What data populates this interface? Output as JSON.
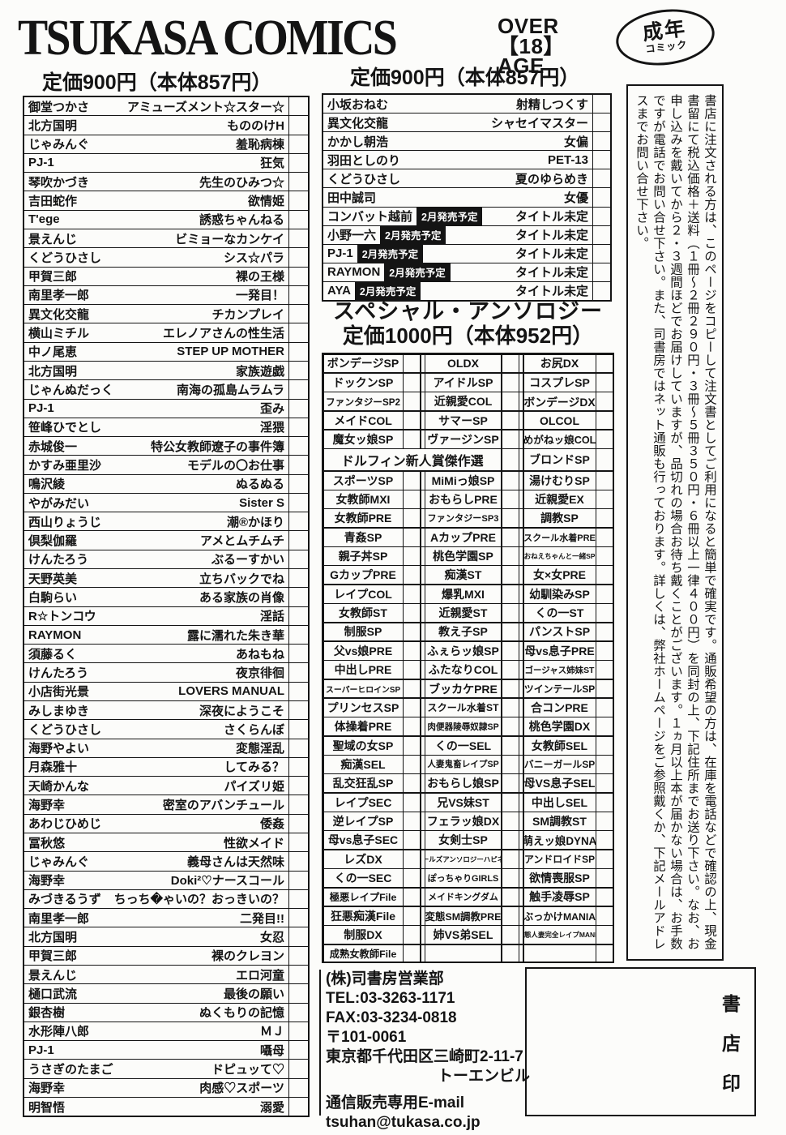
{
  "header": {
    "brand": "TSUKASA COMICS",
    "age_badge": {
      "line1": "OVER",
      "line2": "【18】",
      "line3": "AGE"
    },
    "adult_badge": {
      "top": "成年",
      "bottom": "コミック"
    },
    "price_left": "定価900円（本体857円）",
    "price_right": "定価900円（本体857円）"
  },
  "left_list": {
    "rows": [
      {
        "a": "御堂つかさ",
        "t": "アミューズメント☆スター☆"
      },
      {
        "a": "北方国明",
        "t": "もののけH"
      },
      {
        "a": "じゃみんぐ",
        "t": "羞恥病棟"
      },
      {
        "a": "PJ-1",
        "t": "狂気"
      },
      {
        "a": "琴吹かづき",
        "t": "先生のひみつ☆"
      },
      {
        "a": "吉田蛇作",
        "t": "欲情姫"
      },
      {
        "a": "T'ege",
        "t": "誘惑ちゃんねる"
      },
      {
        "a": "景えんじ",
        "t": "ビミョーなカンケイ"
      },
      {
        "a": "くどうひさし",
        "t": "シス☆パラ"
      },
      {
        "a": "甲賀三郎",
        "t": "裸の王様"
      },
      {
        "a": "南里孝一郎",
        "t": "一発目！"
      },
      {
        "a": "異文化交龍",
        "t": "チカンプレイ"
      },
      {
        "a": "横山ミチル",
        "t": "エレノアさんの性生活"
      },
      {
        "a": "中ノ尾恵",
        "t": "STEP UP MOTHER"
      },
      {
        "a": "北方国明",
        "t": "家族遊戯"
      },
      {
        "a": "じゃんぬだっく",
        "t": "南海の孤島ムラムラ"
      },
      {
        "a": "PJ-1",
        "t": "歪み"
      },
      {
        "a": "笹峰ひでとし",
        "t": "淫猥"
      },
      {
        "a": "赤城俊一",
        "t": "特公女教師遼子の事件簿"
      },
      {
        "a": "かすみ亜里沙",
        "t": "モデルの〇お仕事"
      },
      {
        "a": "鳴沢綾",
        "t": "ぬるぬる"
      },
      {
        "a": "やがみだい",
        "t": "Sister S"
      },
      {
        "a": "西山りょうじ",
        "t": "潮®かほり"
      },
      {
        "a": "倶梨伽羅",
        "t": "アメとムチムチ"
      },
      {
        "a": "けんたろう",
        "t": "ぶるーすかい"
      },
      {
        "a": "天野英美",
        "t": "立ちバックでね"
      },
      {
        "a": "白駒らい",
        "t": "ある家族の肖像"
      },
      {
        "a": "R☆トンコウ",
        "t": "淫話"
      },
      {
        "a": "RAYMON",
        "t": "露に濡れた朱き華"
      },
      {
        "a": "須藤るく",
        "t": "あねもね"
      },
      {
        "a": "けんたろう",
        "t": "夜京徘徊"
      },
      {
        "a": "小店街光景",
        "t": "LOVERS MANUAL"
      },
      {
        "a": "みしまゆき",
        "t": "深夜にようこそ"
      },
      {
        "a": "くどうひさし",
        "t": "さくらんぼ"
      },
      {
        "a": "海野やよい",
        "t": "変態淫乱"
      },
      {
        "a": "月森雅十",
        "t": "してみる？"
      },
      {
        "a": "天崎かんな",
        "t": "パイズリ姫"
      },
      {
        "a": "海野幸",
        "t": "密室のアバンチュール"
      },
      {
        "a": "あわじひめじ",
        "t": "倭姦"
      },
      {
        "a": "冨秋悠",
        "t": "性欲メイド"
      },
      {
        "a": "じゃみんぐ",
        "t": "義母さんは天然味"
      },
      {
        "a": "海野幸",
        "t": "Doki²♡ナースコール"
      },
      {
        "a": "みづきるうず",
        "t": "ちっち�ゃいの？おっきいの？"
      },
      {
        "a": "南里孝一郎",
        "t": "二発目!!"
      },
      {
        "a": "北方国明",
        "t": "女忍"
      },
      {
        "a": "甲賀三郎",
        "t": "裸のクレヨン"
      },
      {
        "a": "景えんじ",
        "t": "エロ河童"
      },
      {
        "a": "樋口武流",
        "t": "最後の願い"
      },
      {
        "a": "銀杏樹",
        "t": "ぬくもりの記憶"
      },
      {
        "a": "水形陣八郎",
        "t": "ＭＪ"
      },
      {
        "a": "PJ-1",
        "t": "囁母"
      },
      {
        "a": "うさぎのたまご",
        "t": "ドピュッて♡"
      },
      {
        "a": "海野幸",
        "t": "肉感♡スポーツ"
      },
      {
        "a": "明智悟",
        "t": "溺愛"
      }
    ]
  },
  "right_list": {
    "release_badge": "2月発売予定",
    "rows": [
      {
        "a": "小坂おねむ",
        "t": "射精しつくす"
      },
      {
        "a": "異文化交龍",
        "t": "シャセイマスター"
      },
      {
        "a": "かかし朝浩",
        "t": "女偏"
      },
      {
        "a": "羽田としのり",
        "t": "PET-13"
      },
      {
        "a": "くどうひさし",
        "t": "夏のゆらめき"
      },
      {
        "a": "田中誠司",
        "t": "女優"
      },
      {
        "a": "コンバット越前",
        "badge": true,
        "t": "タイトル未定"
      },
      {
        "a": "小野一六",
        "badge": true,
        "t": "タイトル未定"
      },
      {
        "a": "PJ-1",
        "badge": true,
        "t": "タイトル未定"
      },
      {
        "a": "RAYMON",
        "badge": true,
        "t": "タイトル未定"
      },
      {
        "a": "AYA",
        "badge": true,
        "t": "タイトル未定"
      }
    ]
  },
  "anthology": {
    "title": "スペシャル・アンソロジー",
    "price": "定価1000円（本体952円）",
    "rows": [
      {
        "c1": "ボンデージSP",
        "c2": "OLDX",
        "c3": "お尻DX"
      },
      {
        "c1": "ドックンSP",
        "c2": "アイドルSP",
        "c3": "コスプレSP"
      },
      {
        "c1": "ファンタジーSP2",
        "c2": "近親愛COL",
        "c3": "ボンデージDX"
      },
      {
        "c1": "メイドCOL",
        "c2": "サマーSP",
        "c3": "OLCOL"
      },
      {
        "c1": "魔女ッ娘SP",
        "c2": "ヴァージンSP",
        "c3": "めがねッ娘COL"
      },
      {
        "span": "ドルフィン新人賞傑作選",
        "c3": "ブロンドSP"
      },
      {
        "c1": "スポーツSP",
        "c2": "MiMiっ娘SP",
        "c3": "湯けむりSP"
      },
      {
        "c1": "女教師MXI",
        "c2": "おもらしPRE",
        "c3": "近親愛EX"
      },
      {
        "c1": "女教師PRE",
        "c2": "ファンタジーSP3",
        "c3": "調教SP"
      },
      {
        "c1": "青姦SP",
        "c2": "AカップPRE",
        "c3": "スクール水着PRE"
      },
      {
        "c1": "親子丼SP",
        "c2": "桃色学園SP",
        "c3": "おねえちゃんと一緒SP"
      },
      {
        "c1": "GカップPRE",
        "c2": "痴漢ST",
        "c3": "女×女PRE"
      },
      {
        "c1": "レイプCOL",
        "c2": "爆乳MXI",
        "c3": "幼馴染みSP"
      },
      {
        "c1": "女教師ST",
        "c2": "近親愛ST",
        "c3": "くの一ST"
      },
      {
        "c1": "制服SP",
        "c2": "教え子SP",
        "c3": "パンストSP"
      },
      {
        "c1": "父vs娘PRE",
        "c2": "ふぇらッ娘SP",
        "c3": "母vs息子PRE"
      },
      {
        "c1": "中出しPRE",
        "c2": "ふたなりCOL",
        "c3": "ゴージャス姉妹ST"
      },
      {
        "c1": "スーパーヒロインSP",
        "c2": "ブッカケPRE",
        "c3": "ツインテールSP"
      },
      {
        "c1": "プリンセスSP",
        "c2": "スクール水着ST",
        "c3": "合コンPRE"
      },
      {
        "c1": "体操着PRE",
        "c2": "肉便器陵辱奴隷SP",
        "c3": "桃色学園DX"
      },
      {
        "c1": "聖域の女SP",
        "c2": "くの一SEL",
        "c3": "女教師SEL"
      },
      {
        "c1": "痴漢SEL",
        "c2": "人妻鬼畜レイプSP",
        "c3": "バニーガールSP"
      },
      {
        "c1": "乱交狂乱SP",
        "c2": "おもらし娘SP",
        "c3": "母VS息子SEL"
      },
      {
        "c1": "レイプSEC",
        "c2": "兄VS妹ST",
        "c3": "中出しSEL"
      },
      {
        "c1": "逆レイプSP",
        "c2": "フェラッ娘DX",
        "c3": "SM調教ST"
      },
      {
        "c1": "母vs息子SEC",
        "c2": "女剣士SP",
        "c3": "萌えッ娘DYNA"
      },
      {
        "c1": "レズDX",
        "c2": "ガールズアンソロジーハピネス",
        "c3": "アンドロイドSP"
      },
      {
        "c1": "くの一SEC",
        "c2": "ぽっちゃりGIRLS",
        "c3": "欲情喪服SP"
      },
      {
        "c1": "極悪レイプFile",
        "c2": "メイドキングダム",
        "c3": "触手凌辱SP"
      },
      {
        "c1": "狂悪痴漢File",
        "c2": "変態SM調教PRE",
        "c3": "ぶっかけMANIA"
      },
      {
        "c1": "制服DX",
        "c2": "姉VS弟SEL",
        "c3": "変態人妻完全レイプMANIA"
      },
      {
        "c1": "成熟女教師File",
        "c2": "",
        "c3": ""
      }
    ]
  },
  "order_info": {
    "text": "書店に注文される方は、このページをコピーして注文書としてご利用になると簡単で確実です。通販希望の方は、在庫を電話などで確認の上、現金書留にて税込価格＋送料（１冊〜２冊２９０円・３冊〜５冊３５０円・６冊以上一律４００円）を同封の上、下記住所までお送り下さい。なお、お申し込みを戴いてから２・３週間ほどでお届けしていますが、品切れの場合お待ち戴くことがございます。１ヵ月以上本が届かない場合は、お手数ですが電話でお問い合せ下さい。また、司書房ではネット通販も行っております。詳しくは、弊社ホームページをご参照戴くか、下記メールアドレスまでお問い合せ下さい。"
  },
  "contact": {
    "lines": [
      "(株)司書房営業部",
      "TEL:03-3263-1171",
      "FAX:03-3234-0818",
      "〒101-0061",
      "東京都千代田区三崎町2-11-7",
      "トーエンビル",
      "通信販売専用E-mail",
      "tsuhan@tukasa.co.jp"
    ]
  },
  "stamp": {
    "label": "書店印"
  },
  "colors": {
    "ink": "#141414",
    "paper": "#fcfcfa"
  }
}
